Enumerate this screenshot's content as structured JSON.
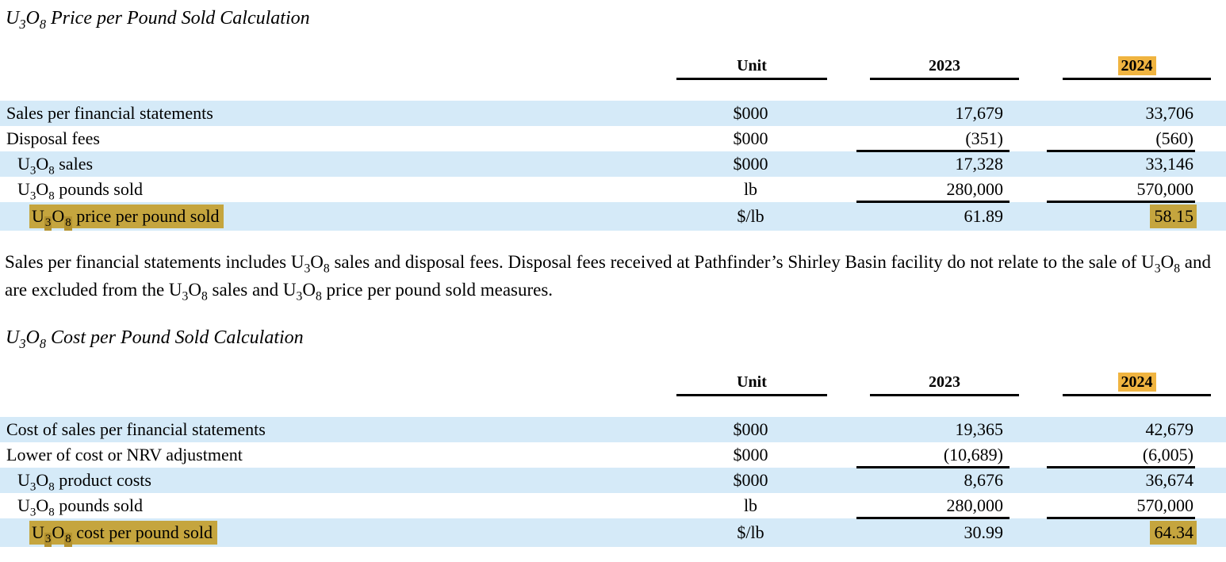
{
  "colors": {
    "row_shade": "#D5EAF8",
    "gold_highlight": "#C5A53E",
    "gold_highlight_sub": "#B3922F",
    "header_highlight": "#F0B440"
  },
  "sections": [
    {
      "title": "U~3~O~8~ Price per Pound Sold Calculation",
      "table": {
        "columns": [
          "Unit",
          "2023",
          "2024"
        ],
        "rows": [
          {
            "label": "Sales per financial statements",
            "unit": "$000",
            "v2023": "17,679",
            "v2024": "33,706"
          },
          {
            "label": "Disposal fees",
            "unit": "$000",
            "v2023": "(351)",
            "v2024": "(560)"
          },
          {
            "label": "U~3~O~8~ sales",
            "unit": "$000",
            "v2023": "17,328",
            "v2024": "33,146"
          },
          {
            "label": "U~3~O~8~ pounds sold",
            "unit": "lb",
            "v2023": "280,000",
            "v2024": "570,000"
          },
          {
            "label": "U~3~O~8~ price per pound sold",
            "unit": "$/lb",
            "v2023": "61.89",
            "v2024": "58.15"
          }
        ]
      },
      "note": "Sales per financial statements includes U~3~O~8~ sales and disposal fees. Disposal fees received at Pathfinder’s Shirley Basin facility do not relate to the sale of U~3~O~8~ and are excluded from the U~3~O~8~ sales and U~3~O~8~ price per pound sold measures."
    },
    {
      "title": "U~3~O~8~ Cost per Pound Sold Calculation",
      "table": {
        "columns": [
          "Unit",
          "2023",
          "2024"
        ],
        "rows": [
          {
            "label": "Cost of sales per financial statements",
            "unit": "$000",
            "v2023": "19,365",
            "v2024": "42,679"
          },
          {
            "label": "Lower of cost or NRV adjustment",
            "unit": "$000",
            "v2023": "(10,689)",
            "v2024": "(6,005)"
          },
          {
            "label": "U~3~O~8~ product costs",
            "unit": "$000",
            "v2023": "8,676",
            "v2024": "36,674"
          },
          {
            "label": "U~3~O~8~ pounds sold",
            "unit": "lb",
            "v2023": "280,000",
            "v2024": "570,000"
          },
          {
            "label": "U~3~O~8~ cost per pound sold",
            "unit": "$/lb",
            "v2023": "30.99",
            "v2024": "64.34"
          }
        ]
      }
    }
  ]
}
